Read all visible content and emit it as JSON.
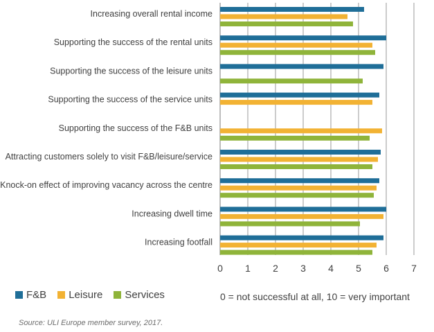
{
  "chart_data": {
    "type": "bar",
    "orientation": "horizontal",
    "categories": [
      "Increasing overall rental income",
      "Supporting the success of the rental units",
      "Supporting the success of the leisure units",
      "Supporting the success of the service units",
      "Supporting the success of the F&B units",
      "Attracting customers solely to visit F&B/leisure/service",
      "Knock-on effect of improving vacancy across the centre",
      "Increasing dwell time",
      "Increasing footfall"
    ],
    "series": [
      {
        "name": "F&B",
        "color": "#1f6e98",
        "values": [
          5.2,
          6.0,
          5.9,
          5.75,
          null,
          5.8,
          5.75,
          6.0,
          5.9
        ]
      },
      {
        "name": "Leisure",
        "color": "#f2b233",
        "values": [
          4.6,
          5.5,
          null,
          5.5,
          5.85,
          5.7,
          5.65,
          5.9,
          5.65
        ]
      },
      {
        "name": "Services",
        "color": "#8fb43a",
        "values": [
          4.8,
          5.6,
          5.15,
          null,
          5.4,
          5.5,
          5.55,
          5.05,
          5.5
        ]
      }
    ],
    "xlim": [
      0,
      7
    ],
    "xticks": [
      0,
      1,
      2,
      3,
      4,
      5,
      6,
      7
    ],
    "grid": true,
    "legend_position": "bottom-left"
  },
  "legend": {
    "items": [
      {
        "label": "F&B",
        "color": "#1f6e98"
      },
      {
        "label": "Leisure",
        "color": "#f2b233"
      },
      {
        "label": "Services",
        "color": "#8fb43a"
      }
    ]
  },
  "scale_note": "0 = not successful at all, 10 = very important",
  "source": "Source: ULI Europe member survey, 2017."
}
